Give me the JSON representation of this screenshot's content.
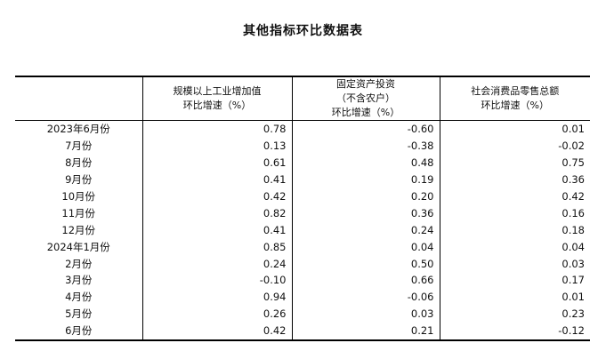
{
  "title": "其他指标环比数据表",
  "headers": [
    [
      ""
    ],
    [
      "规模以上工业增加值",
      "环比增速（%）"
    ],
    [
      "固定资产投资",
      "（不含农户）",
      "环比增速（%）"
    ],
    [
      "社会消费品零售总额",
      "环比增速（%）"
    ]
  ],
  "rows": [
    [
      "2023年6月份",
      "0.78",
      "-0.60",
      "0.01"
    ],
    [
      "7月份",
      "0.13",
      "-0.38",
      "-0.02"
    ],
    [
      "8月份",
      "0.61",
      "0.48",
      "0.75"
    ],
    [
      "9月份",
      "0.41",
      "0.19",
      "0.36"
    ],
    [
      "10月份",
      "0.42",
      "0.20",
      "0.42"
    ],
    [
      "11月份",
      "0.82",
      "0.36",
      "0.16"
    ],
    [
      "12月份",
      "0.41",
      "0.24",
      "0.18"
    ],
    [
      "2024年1月份",
      "0.85",
      "0.04",
      "0.04"
    ],
    [
      "2月份",
      "0.24",
      "0.50",
      "0.03"
    ],
    [
      "3月份",
      "-0.10",
      "0.66",
      "0.17"
    ],
    [
      "4月份",
      "0.94",
      "-0.06",
      "0.01"
    ],
    [
      "5月份",
      "0.26",
      "0.03",
      "0.23"
    ],
    [
      "6月份",
      "0.42",
      "0.21",
      "-0.12"
    ]
  ]
}
